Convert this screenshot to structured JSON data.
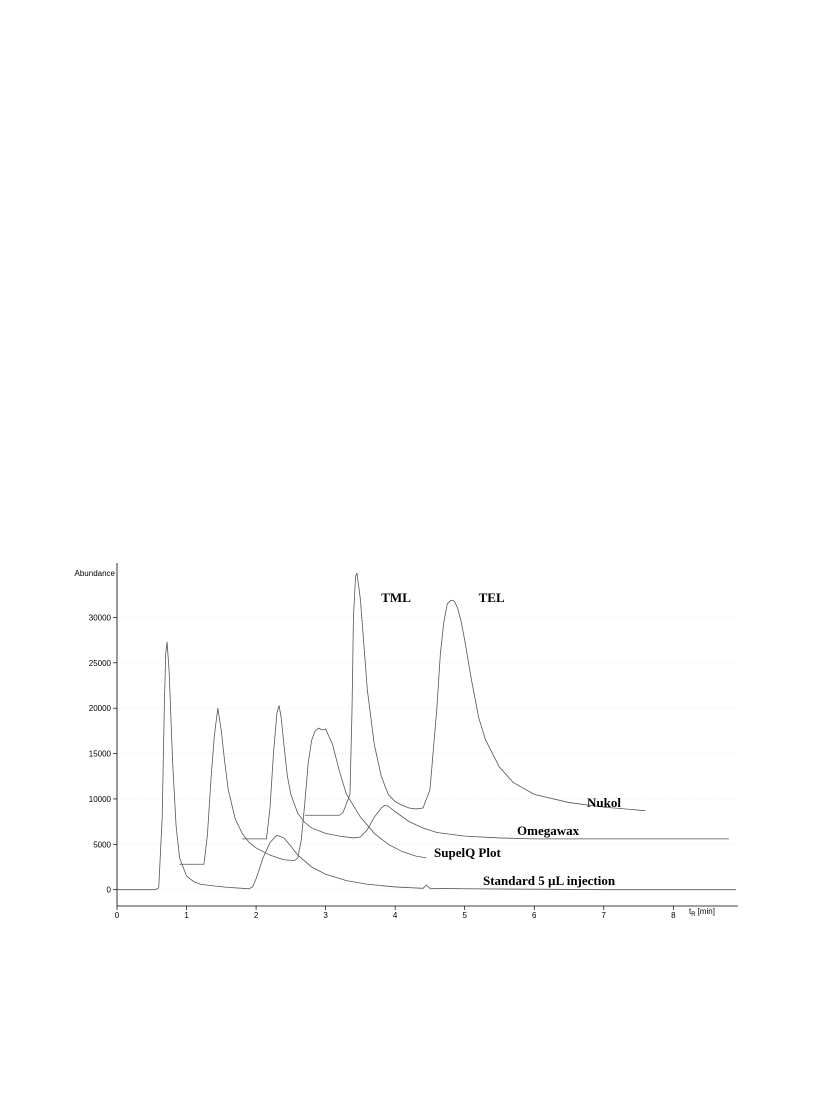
{
  "chart_data": {
    "type": "line",
    "y_label": "Abundance",
    "x_label": {
      "main": "t",
      "sub": "R",
      "rest": "[min]"
    },
    "xlim": [
      0,
      8.93
    ],
    "xticks": [
      0,
      1,
      2,
      3,
      4,
      5,
      6,
      7,
      8
    ],
    "ylim": [
      -1800,
      36000
    ],
    "yticks": [
      0,
      5000,
      10000,
      15000,
      20000,
      25000,
      30000
    ],
    "grid": true,
    "annotations": [
      {
        "text": "TML",
        "x": 3.8,
        "y": 31700
      },
      {
        "text": "TEL",
        "x": 5.2,
        "y": 31700
      }
    ],
    "series": [
      {
        "name": "Standard 5 µL injection",
        "color": "#555555",
        "x": [
          0,
          0.55,
          0.6,
          0.65,
          0.68,
          0.7,
          0.72,
          0.75,
          0.8,
          0.85,
          0.9,
          1.0,
          1.1,
          1.2,
          1.4,
          1.6,
          1.8,
          1.9,
          1.95,
          2.0,
          2.1,
          2.2,
          2.3,
          2.4,
          2.5,
          2.6,
          2.8,
          3.0,
          3.3,
          3.6,
          4.0,
          4.4,
          4.45,
          4.5,
          5,
          6,
          7,
          8,
          8.9
        ],
        "values": [
          0,
          0,
          200,
          8000,
          20000,
          26000,
          27300,
          24000,
          14000,
          7000,
          3500,
          1500,
          900,
          600,
          400,
          250,
          150,
          100,
          300,
          1200,
          3500,
          5200,
          6000,
          5700,
          4800,
          3800,
          2500,
          1700,
          1000,
          600,
          300,
          150,
          500,
          150,
          100,
          50,
          0,
          0,
          0
        ]
      },
      {
        "name": "SupelQ Plot",
        "color": "#555555",
        "x": [
          0.9,
          1.25,
          1.3,
          1.35,
          1.4,
          1.45,
          1.5,
          1.55,
          1.6,
          1.7,
          1.8,
          1.9,
          2.0,
          2.2,
          2.4,
          2.55,
          2.6,
          2.65,
          2.7,
          2.75,
          2.8,
          2.85,
          2.9,
          2.95,
          3.0,
          3.1,
          3.2,
          3.3,
          3.5,
          3.7,
          3.9,
          4.1,
          4.3,
          4.45
        ],
        "values": [
          2800,
          2800,
          6000,
          12000,
          17000,
          20000,
          17500,
          14000,
          11000,
          7800,
          6200,
          5200,
          4600,
          3800,
          3300,
          3200,
          3500,
          5500,
          9500,
          14000,
          16500,
          17500,
          17800,
          17600,
          17700,
          16000,
          13000,
          10500,
          8000,
          6200,
          5000,
          4200,
          3700,
          3500
        ]
      },
      {
        "name": "Omegawax",
        "color": "#555555",
        "x": [
          1.8,
          2.15,
          2.2,
          2.25,
          2.3,
          2.33,
          2.36,
          2.4,
          2.45,
          2.5,
          2.6,
          2.7,
          2.8,
          3.0,
          3.2,
          3.4,
          3.5,
          3.6,
          3.7,
          3.8,
          3.85,
          3.9,
          4.0,
          4.2,
          4.4,
          4.6,
          5.0,
          5.5,
          6.0,
          7.0,
          8.0,
          8.8
        ],
        "values": [
          5600,
          5600,
          9000,
          15000,
          19500,
          20300,
          19000,
          16000,
          12500,
          10500,
          8400,
          7400,
          6800,
          6200,
          5900,
          5700,
          5800,
          6600,
          8000,
          9000,
          9300,
          9200,
          8600,
          7500,
          6800,
          6300,
          5900,
          5700,
          5600,
          5600,
          5600,
          5600
        ]
      },
      {
        "name": "Nukol",
        "color": "#555555",
        "x": [
          2.7,
          3.2,
          3.25,
          3.3,
          3.35,
          3.38,
          3.4,
          3.43,
          3.45,
          3.5,
          3.55,
          3.6,
          3.7,
          3.8,
          3.9,
          4.0,
          4.1,
          4.2,
          4.3,
          4.4,
          4.5,
          4.6,
          4.65,
          4.7,
          4.75,
          4.8,
          4.85,
          4.9,
          4.95,
          5.0,
          5.1,
          5.2,
          5.3,
          5.5,
          5.7,
          6.0,
          6.5,
          7.0,
          7.6
        ],
        "values": [
          8200,
          8200,
          8500,
          9500,
          10500,
          20000,
          30000,
          34500,
          34900,
          32000,
          27000,
          22000,
          16000,
          12500,
          10500,
          9700,
          9300,
          9000,
          8900,
          9000,
          11000,
          20000,
          26000,
          29500,
          31500,
          31900,
          31800,
          31000,
          29500,
          27500,
          23000,
          19000,
          16500,
          13500,
          11800,
          10500,
          9600,
          9100,
          8700
        ]
      }
    ]
  }
}
